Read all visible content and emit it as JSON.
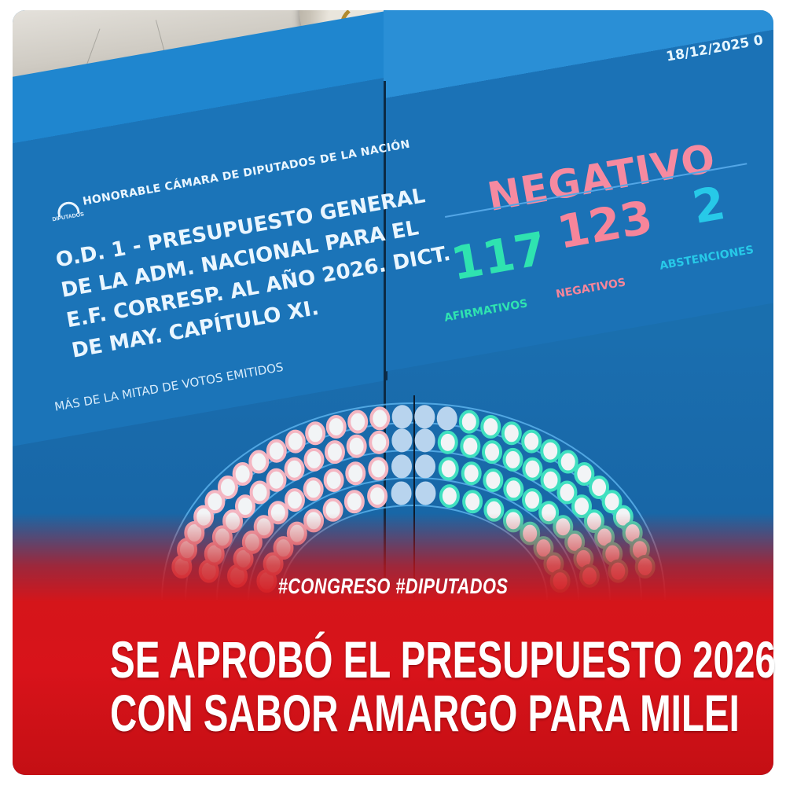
{
  "scoreboard": {
    "header": "HONORABLE CÁMARA DE DIPUTADOS DE LA NACIÓN",
    "logo_label": "DIPUTADOS",
    "date": "18/12/2025 0",
    "motion_title_lines": [
      "O.D. 1 - PRESUPUESTO GENERAL",
      "DE LA ADM. NACIONAL PARA EL",
      "E.F. CORRESP. AL AÑO 2026. DICT.",
      "DE MAY. CAPÍTULO XI."
    ],
    "majority_rule": "MÁS DE LA MITAD DE VOTOS EMITIDOS",
    "result": "NEGATIVO",
    "votes": {
      "afirmativos": {
        "value": "117",
        "label": "AFIRMATIVOS",
        "color": "#2fe3b0"
      },
      "negativos": {
        "value": "123",
        "label": "NEGATIVOS",
        "color": "#f6859a"
      },
      "abstenciones": {
        "value": "2",
        "label": "ABSTENCIONES",
        "color": "#27c9e8"
      }
    },
    "seat_colors": {
      "negative": "#f4b6c2",
      "affirmative": "#3fe0c0",
      "absent": "#b8d4ee",
      "abstention": "#9fe0f0"
    }
  },
  "overlay": {
    "hashtags": "#CONGRESO #DIPUTADOS",
    "headline_lines": [
      "SE APROBÓ EL PRESUPUESTO 2026",
      "CON SABOR AMARGO PARA MILEI"
    ],
    "band_color": "#d5151a"
  }
}
